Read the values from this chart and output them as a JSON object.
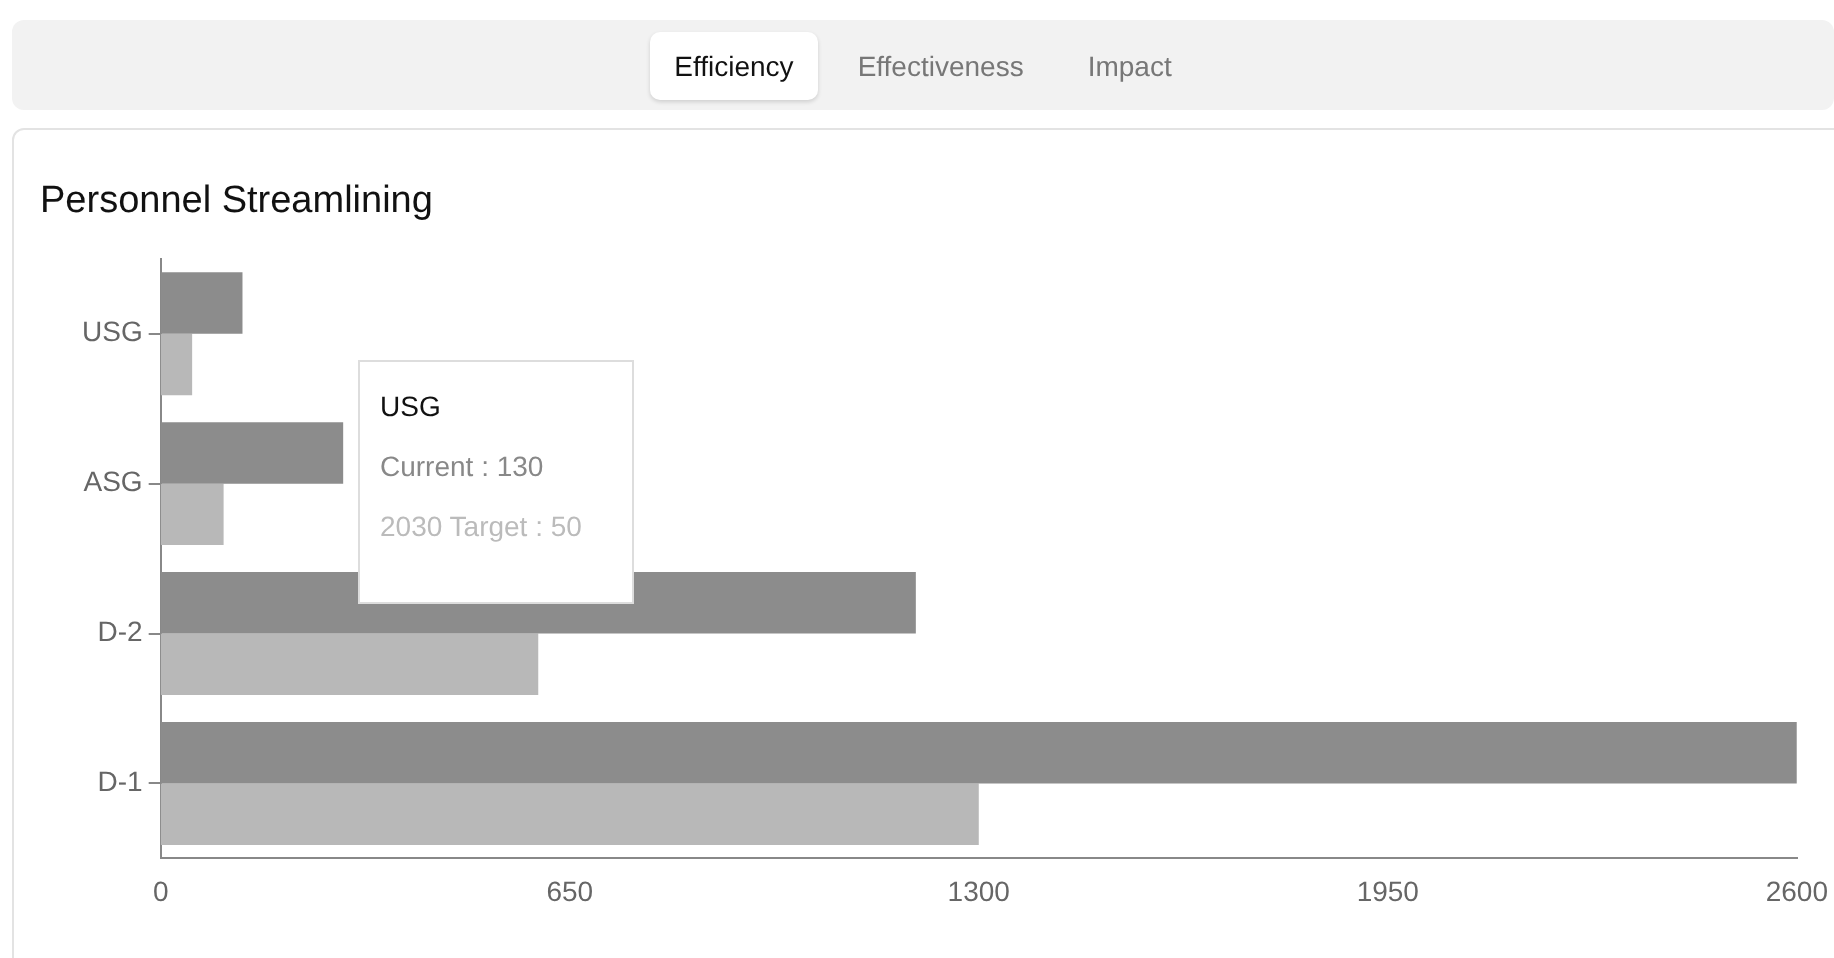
{
  "chart_data": {
    "type": "bar",
    "orientation": "horizontal",
    "title": "Personnel Streamlining",
    "categories": [
      "USG",
      "ASG",
      "D-2",
      "D-1"
    ],
    "series": [
      {
        "color": "#8c8c8c",
        "values": [
          130,
          290,
          1200,
          2600
        ]
      },
      {
        "color": "#b8b8b8",
        "values": [
          50,
          100,
          600,
          1300
        ]
      }
    ],
    "xlim": [
      0,
      2600
    ],
    "xticks": [
      0,
      650,
      1300,
      1950,
      2600
    ],
    "grid": false,
    "legend": false,
    "annotations": [
      "Efficiency",
      "Effectiveness",
      "Impact",
      "USG",
      "Current : 130",
      "2030 Target : 50"
    ]
  }
}
